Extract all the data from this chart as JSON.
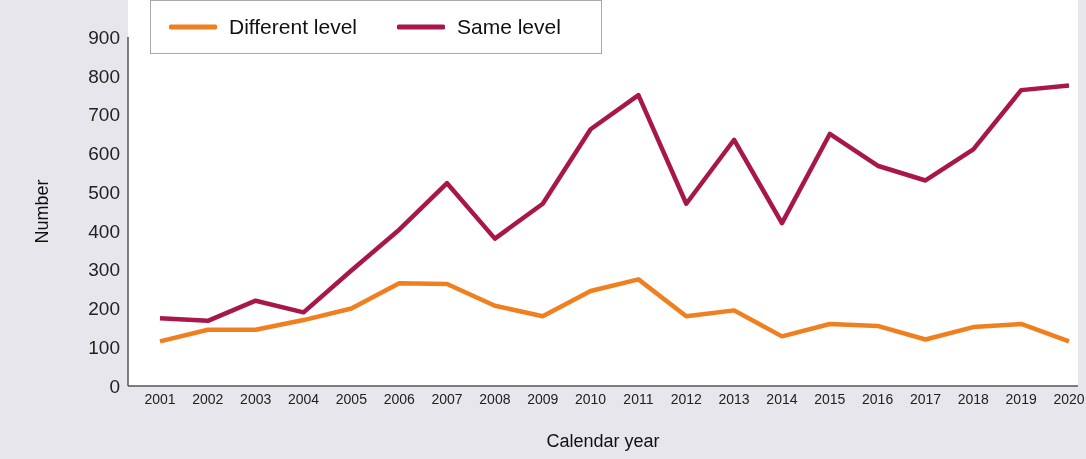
{
  "chart_data": {
    "type": "line",
    "xlabel": "Calendar year",
    "ylabel": "Number",
    "categories": [
      "2001",
      "2002",
      "2003",
      "2004",
      "2005",
      "2006",
      "2007",
      "2008",
      "2009",
      "2010",
      "2011",
      "2012",
      "2013",
      "2014",
      "2015",
      "2016",
      "2017",
      "2018",
      "2019",
      "2020"
    ],
    "series": [
      {
        "name": "Different level",
        "color": "#f07f1f",
        "values": [
          115,
          145,
          145,
          170,
          200,
          265,
          263,
          207,
          180,
          245,
          275,
          180,
          195,
          128,
          160,
          155,
          120,
          152,
          160,
          115
        ]
      },
      {
        "name": "Same level",
        "color": "#a8174a",
        "values": [
          175,
          168,
          220,
          190,
          298,
          403,
          523,
          380,
          470,
          662,
          750,
          470,
          635,
          420,
          650,
          568,
          530,
          610,
          763,
          775
        ]
      }
    ],
    "ylim": [
      0,
      900
    ],
    "yticks": [
      0,
      100,
      200,
      300,
      400,
      500,
      600,
      700,
      800,
      900
    ],
    "grid": false,
    "legend": "top left",
    "marker": "none",
    "line_style": "solid"
  }
}
